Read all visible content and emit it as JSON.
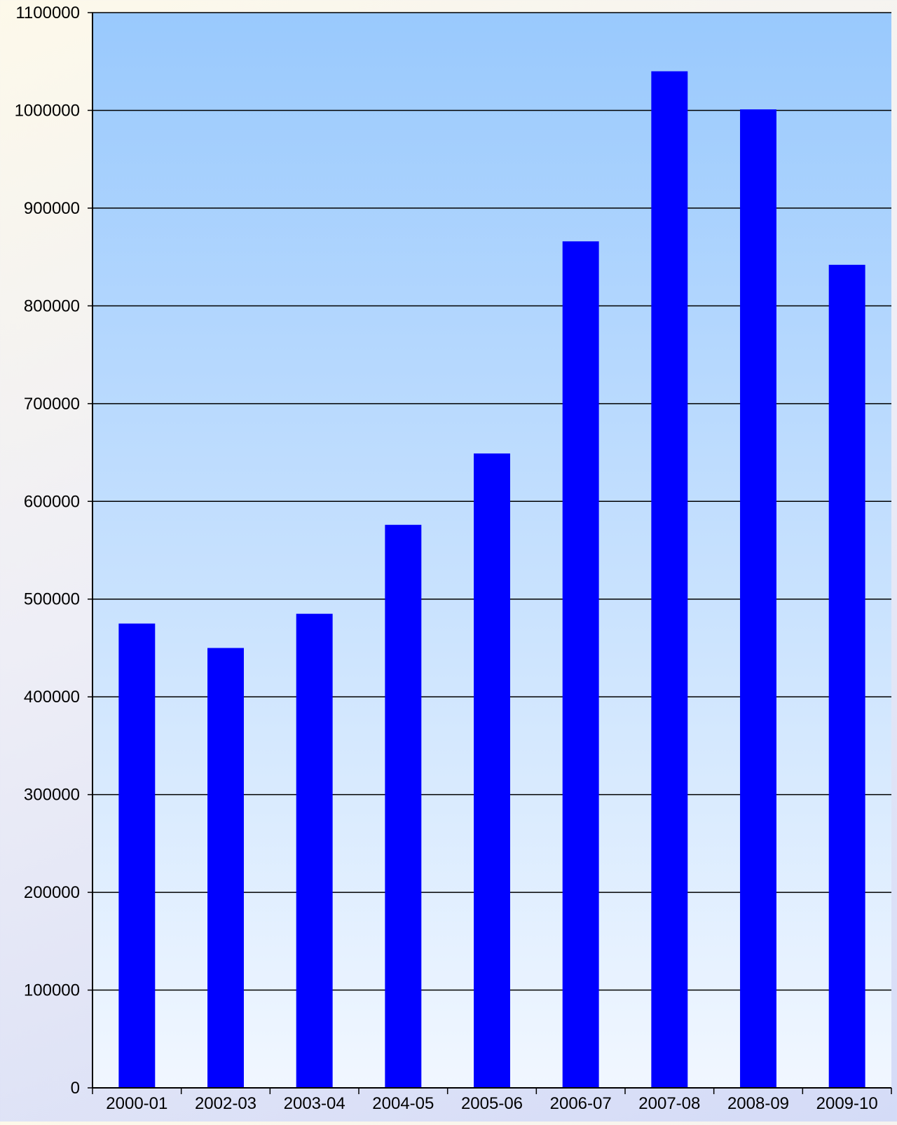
{
  "colors": {
    "bar": "#0000ff",
    "plot_top": "#99c9fd",
    "plot_bottom": "#f1f7ff",
    "gridline": "#000000",
    "axis": "#000000"
  },
  "chart_data": {
    "type": "bar",
    "title": "",
    "xlabel": "",
    "ylabel": "",
    "categories": [
      "2000-01",
      "2002-03",
      "2003-04",
      "2004-05",
      "2005-06",
      "2006-07",
      "2007-08",
      "2008-09",
      "2009-10"
    ],
    "values": [
      475000,
      450000,
      485000,
      576000,
      649000,
      866000,
      1040000,
      1001000,
      842000
    ],
    "ylim": [
      0,
      1100000
    ],
    "yticks": [
      0,
      100000,
      200000,
      300000,
      400000,
      500000,
      600000,
      700000,
      800000,
      900000,
      1000000,
      1100000
    ],
    "grid": true,
    "legend": "none"
  }
}
